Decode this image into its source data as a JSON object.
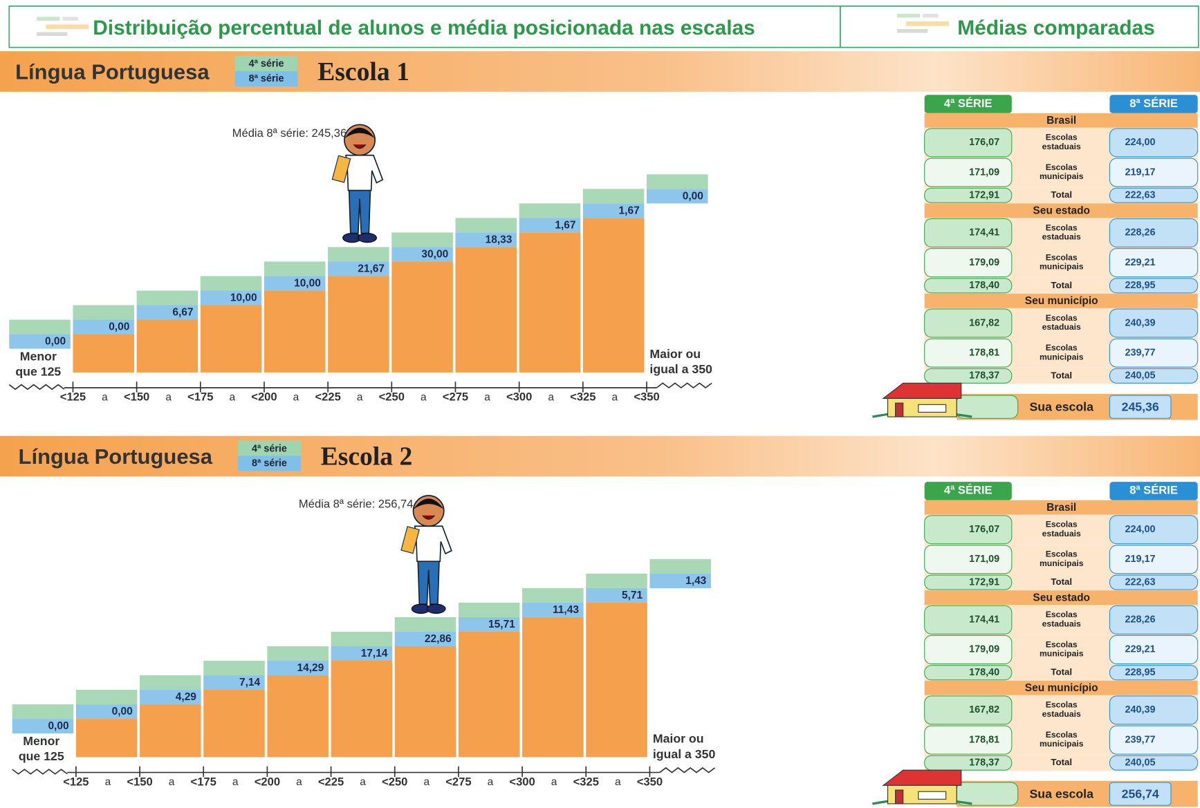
{
  "header": {
    "left_title": "Distribuição percentual de alunos e média posicionada nas escalas",
    "right_title": "Médias comparadas"
  },
  "schools": [
    {
      "subject": "Língua Portuguesa",
      "grade_badges": [
        "4ª série",
        "8ª série"
      ],
      "school": "Escola 1",
      "mean_label": "Média 8ª série: 245,36",
      "left_label": [
        "Menor",
        "que 125"
      ],
      "right_label": [
        "Maior ou",
        "igual a 350"
      ],
      "steps": [
        "0,00",
        "0,00",
        "6,67",
        "10,00",
        "10,00",
        "21,67",
        "30,00",
        "18,33",
        "1,67",
        "1,67",
        "0,00"
      ],
      "axis_ticks": [
        "<125",
        "<150",
        "<175",
        "<200",
        "<225",
        "<250",
        "<275",
        "<300",
        "<325",
        "<350"
      ],
      "axis_separator": "a",
      "table": {
        "col_left": "4ª SÉRIE",
        "col_right": "8ª SÉRIE",
        "groups": [
          {
            "name": "Brasil",
            "rows": [
              {
                "left": "176,07",
                "label": "Escolas estaduais",
                "right": "224,00"
              },
              {
                "left": "171,09",
                "label": "Escolas municipais",
                "right": "219,17"
              },
              {
                "left": "172,91",
                "label": "Total",
                "right": "222,63"
              }
            ]
          },
          {
            "name": "Seu estado",
            "rows": [
              {
                "left": "174,41",
                "label": "Escolas estaduais",
                "right": "228,26"
              },
              {
                "left": "179,09",
                "label": "Escolas municipais",
                "right": "229,21"
              },
              {
                "left": "178,40",
                "label": "Total",
                "right": "228,95"
              }
            ]
          },
          {
            "name": "Seu município",
            "rows": [
              {
                "left": "167,82",
                "label": "Escolas estaduais",
                "right": "240,39"
              },
              {
                "left": "178,81",
                "label": "Escolas municipais",
                "right": "239,77"
              },
              {
                "left": "178,37",
                "label": "Total",
                "right": "240,05"
              }
            ]
          }
        ],
        "school_row": {
          "label": "Sua escola",
          "right": "245,36"
        }
      }
    },
    {
      "subject": "Língua Portuguesa",
      "grade_badges": [
        "4ª série",
        "8ª série"
      ],
      "school": "Escola 2",
      "mean_label": "Média 8ª série: 256,74",
      "left_label": [
        "Menor",
        "que 125"
      ],
      "right_label": [
        "Maior ou",
        "igual a 350"
      ],
      "steps": [
        "0,00",
        "0,00",
        "4,29",
        "7,14",
        "14,29",
        "17,14",
        "22,86",
        "15,71",
        "11,43",
        "5,71",
        "1,43"
      ],
      "axis_ticks": [
        "<125",
        "<150",
        "<175",
        "<200",
        "<225",
        "<250",
        "<275",
        "<300",
        "<325",
        "<350"
      ],
      "axis_separator": "a",
      "table": {
        "col_left": "4ª SÉRIE",
        "col_right": "8ª SÉRIE",
        "groups": [
          {
            "name": "Brasil",
            "rows": [
              {
                "left": "176,07",
                "label": "Escolas estaduais",
                "right": "224,00"
              },
              {
                "left": "171,09",
                "label": "Escolas municipais",
                "right": "219,17"
              },
              {
                "left": "172,91",
                "label": "Total",
                "right": "222,63"
              }
            ]
          },
          {
            "name": "Seu estado",
            "rows": [
              {
                "left": "174,41",
                "label": "Escolas estaduais",
                "right": "228,26"
              },
              {
                "left": "179,09",
                "label": "Escolas municipais",
                "right": "229,21"
              },
              {
                "left": "178,40",
                "label": "Total",
                "right": "228,95"
              }
            ]
          },
          {
            "name": "Seu município",
            "rows": [
              {
                "left": "167,82",
                "label": "Escolas estaduais",
                "right": "240,39"
              },
              {
                "left": "178,81",
                "label": "Escolas municipais",
                "right": "239,77"
              },
              {
                "left": "178,37",
                "label": "Total",
                "right": "240,05"
              }
            ]
          }
        ],
        "school_row": {
          "label": "Sua escola",
          "right": "256,74"
        }
      }
    }
  ]
}
